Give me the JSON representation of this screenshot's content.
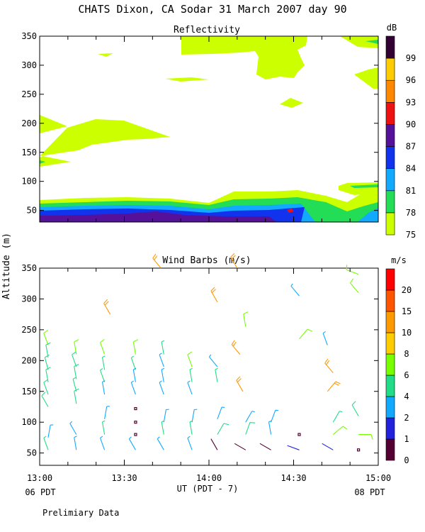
{
  "title": "CHATS Dixon, CA  Sodar  31 March 2007  day  90",
  "y_axis_label": "Altitude (m)",
  "x_axis_label": "UT  (PDT - 7)",
  "x_left_note": "06 PDT",
  "x_right_note": "08 PDT",
  "footer_note": "Prelimiary Data",
  "chart_data": [
    {
      "type": "heatmap",
      "title": "Reflectivity",
      "xlabel": "UT  (PDT - 7)",
      "ylabel": "Altitude (m)",
      "x_ticks": [
        "13:00",
        "13:30",
        "14:00",
        "14:30",
        "15:00"
      ],
      "y_ticks": [
        50,
        100,
        150,
        200,
        250,
        300,
        350
      ],
      "ylim": [
        30,
        350
      ],
      "xlim_minutes_after_13UT": [
        0,
        120
      ],
      "colorbar": {
        "unit": "dB",
        "levels": [
          75,
          78,
          81,
          84,
          87,
          90,
          93,
          96,
          99
        ],
        "colors": [
          "#ccff00",
          "#22dd55",
          "#11aaff",
          "#1133ee",
          "#551199",
          "#ee1111",
          "#ff8800",
          "#ffcc00",
          "#330033"
        ]
      },
      "regions": [
        {
          "level": 75,
          "desc": "band from surface to ~70-90 m; plumes 130-220 m near 13:00-13:30; patches 240-350 m after 13:50"
        },
        {
          "level": 78,
          "desc": "layer ~55-75 m"
        },
        {
          "level": 81,
          "desc": "layer ~50-65 m"
        },
        {
          "level": 84,
          "desc": "layer ~45-60 m"
        },
        {
          "level": 87,
          "desc": "layer ~40-50 m before 14:40"
        }
      ]
    },
    {
      "type": "scatter",
      "title": "Wind Barbs (m/s)",
      "xlabel": "UT  (PDT - 7)",
      "ylabel": "Altitude (m)",
      "x_ticks": [
        "13:00",
        "13:30",
        "14:00",
        "14:30",
        "15:00"
      ],
      "y_ticks": [
        50,
        100,
        150,
        200,
        250,
        300,
        350
      ],
      "ylim": [
        30,
        350
      ],
      "colorbar": {
        "unit": "m/s",
        "levels": [
          0,
          1,
          2,
          4,
          6,
          8,
          10,
          15,
          20
        ],
        "colors": [
          "#550033",
          "#2222dd",
          "#11aaff",
          "#22dd88",
          "#77ff00",
          "#ffcc00",
          "#ff9900",
          "#ff5500",
          "#ff0000"
        ]
      },
      "barbs": [
        {
          "t": 3,
          "z": 225,
          "dir": 340,
          "spd": 7
        },
        {
          "t": 3,
          "z": 205,
          "dir": 350,
          "spd": 5
        },
        {
          "t": 3,
          "z": 185,
          "dir": 345,
          "spd": 5
        },
        {
          "t": 3,
          "z": 165,
          "dir": 350,
          "spd": 5
        },
        {
          "t": 3,
          "z": 145,
          "dir": 340,
          "spd": 5
        },
        {
          "t": 3,
          "z": 125,
          "dir": 330,
          "spd": 5
        },
        {
          "t": 3,
          "z": 75,
          "dir": 10,
          "spd": 3
        },
        {
          "t": 3,
          "z": 55,
          "dir": 340,
          "spd": 4
        },
        {
          "t": 13,
          "z": 210,
          "dir": 350,
          "spd": 6
        },
        {
          "t": 13,
          "z": 190,
          "dir": 340,
          "spd": 5
        },
        {
          "t": 13,
          "z": 170,
          "dir": 350,
          "spd": 5
        },
        {
          "t": 13,
          "z": 150,
          "dir": 345,
          "spd": 4
        },
        {
          "t": 13,
          "z": 130,
          "dir": 350,
          "spd": 5
        },
        {
          "t": 13,
          "z": 80,
          "dir": 330,
          "spd": 3
        },
        {
          "t": 13,
          "z": 55,
          "dir": 350,
          "spd": 3
        },
        {
          "t": 23,
          "z": 210,
          "dir": 340,
          "spd": 6
        },
        {
          "t": 23,
          "z": 185,
          "dir": 350,
          "spd": 4
        },
        {
          "t": 23,
          "z": 165,
          "dir": 340,
          "spd": 4
        },
        {
          "t": 23,
          "z": 145,
          "dir": 350,
          "spd": 3
        },
        {
          "t": 23,
          "z": 105,
          "dir": 10,
          "spd": 3
        },
        {
          "t": 23,
          "z": 80,
          "dir": 350,
          "spd": 4
        },
        {
          "t": 23,
          "z": 55,
          "dir": 340,
          "spd": 3
        },
        {
          "t": 25,
          "z": 275,
          "dir": 330,
          "spd": 11
        },
        {
          "t": 34,
          "z": 210,
          "dir": 350,
          "spd": 6
        },
        {
          "t": 34,
          "z": 185,
          "dir": 340,
          "spd": 4
        },
        {
          "t": 34,
          "z": 165,
          "dir": 350,
          "spd": 3
        },
        {
          "t": 34,
          "z": 145,
          "dir": 340,
          "spd": 3
        },
        {
          "t": 34,
          "z": 122,
          "dir": 20,
          "spd": 0.5
        },
        {
          "t": 34,
          "z": 100,
          "dir": 270,
          "spd": 0.5
        },
        {
          "t": 34,
          "z": 80,
          "dir": 0,
          "spd": 0.5
        },
        {
          "t": 34,
          "z": 55,
          "dir": 330,
          "spd": 3
        },
        {
          "t": 43,
          "z": 350,
          "dir": 320,
          "spd": 11
        },
        {
          "t": 44,
          "z": 210,
          "dir": 350,
          "spd": 4
        },
        {
          "t": 44,
          "z": 190,
          "dir": 340,
          "spd": 3
        },
        {
          "t": 44,
          "z": 165,
          "dir": 350,
          "spd": 3
        },
        {
          "t": 44,
          "z": 145,
          "dir": 340,
          "spd": 3
        },
        {
          "t": 44,
          "z": 100,
          "dir": 10,
          "spd": 3
        },
        {
          "t": 44,
          "z": 80,
          "dir": 350,
          "spd": 4
        },
        {
          "t": 44,
          "z": 55,
          "dir": 330,
          "spd": 3
        },
        {
          "t": 54,
          "z": 190,
          "dir": 340,
          "spd": 7
        },
        {
          "t": 54,
          "z": 165,
          "dir": 350,
          "spd": 4
        },
        {
          "t": 54,
          "z": 145,
          "dir": 340,
          "spd": 3
        },
        {
          "t": 54,
          "z": 100,
          "dir": 10,
          "spd": 3
        },
        {
          "t": 54,
          "z": 80,
          "dir": 350,
          "spd": 4
        },
        {
          "t": 54,
          "z": 55,
          "dir": 340,
          "spd": 3
        },
        {
          "t": 63,
          "z": 295,
          "dir": 330,
          "spd": 11
        },
        {
          "t": 63,
          "z": 190,
          "dir": 320,
          "spd": 3
        },
        {
          "t": 63,
          "z": 165,
          "dir": 350,
          "spd": 4
        },
        {
          "t": 63,
          "z": 105,
          "dir": 20,
          "spd": 3
        },
        {
          "t": 63,
          "z": 80,
          "dir": 30,
          "spd": 5
        },
        {
          "t": 63,
          "z": 55,
          "dir": 330,
          "spd": 0.8
        },
        {
          "t": 70,
          "z": 350,
          "dir": 330,
          "spd": 11
        },
        {
          "t": 71,
          "z": 210,
          "dir": 320,
          "spd": 12
        },
        {
          "t": 72,
          "z": 150,
          "dir": 330,
          "spd": 11
        },
        {
          "t": 73,
          "z": 255,
          "dir": 350,
          "spd": 6
        },
        {
          "t": 73,
          "z": 100,
          "dir": 30,
          "spd": 3
        },
        {
          "t": 73,
          "z": 80,
          "dir": 20,
          "spd": 5
        },
        {
          "t": 73,
          "z": 55,
          "dir": 300,
          "spd": 0.8
        },
        {
          "t": 82,
          "z": 100,
          "dir": 20,
          "spd": 3
        },
        {
          "t": 82,
          "z": 80,
          "dir": 350,
          "spd": 3
        },
        {
          "t": 82,
          "z": 55,
          "dir": 300,
          "spd": 0.8
        },
        {
          "t": 92,
          "z": 305,
          "dir": 320,
          "spd": 3
        },
        {
          "t": 92,
          "z": 235,
          "dir": 40,
          "spd": 7
        },
        {
          "t": 92,
          "z": 80,
          "dir": 0,
          "spd": 0.5
        },
        {
          "t": 92,
          "z": 55,
          "dir": 290,
          "spd": 1
        },
        {
          "t": 102,
          "z": 225,
          "dir": 340,
          "spd": 3
        },
        {
          "t": 104,
          "z": 180,
          "dir": 320,
          "spd": 10
        },
        {
          "t": 102,
          "z": 150,
          "dir": 40,
          "spd": 10
        },
        {
          "t": 104,
          "z": 100,
          "dir": 30,
          "spd": 4
        },
        {
          "t": 104,
          "z": 80,
          "dir": 50,
          "spd": 6
        },
        {
          "t": 104,
          "z": 55,
          "dir": 300,
          "spd": 1
        },
        {
          "t": 113,
          "z": 340,
          "dir": 290,
          "spd": 6
        },
        {
          "t": 113,
          "z": 310,
          "dir": 320,
          "spd": 6
        },
        {
          "t": 113,
          "z": 110,
          "dir": 330,
          "spd": 5
        },
        {
          "t": 113,
          "z": 80,
          "dir": 90,
          "spd": 6
        },
        {
          "t": 113,
          "z": 55,
          "dir": 340,
          "spd": 0.6
        }
      ]
    }
  ]
}
